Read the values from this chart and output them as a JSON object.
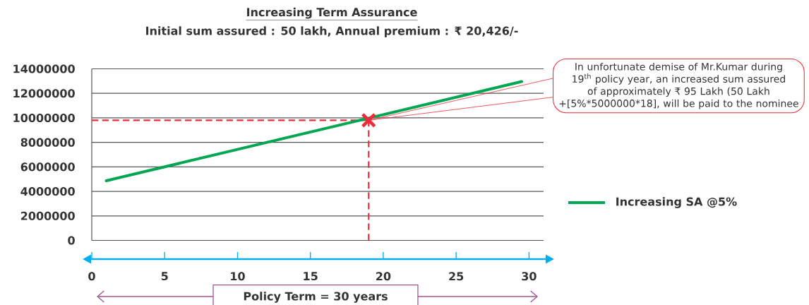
{
  "chart_data": {
    "type": "line",
    "title": "Increasing Term Assurance",
    "subtitle": "Initial sum assured : 50 lakh, Annual premium : ₹ 20,426/-",
    "xlabel": "Policy Term = 30 years",
    "x": [
      1,
      29.5
    ],
    "series": [
      {
        "name": "Increasing SA @5%",
        "color": "#00a651",
        "values": [
          4870000,
          12960000
        ]
      },
      {
        "type": "scatter",
        "marker": "cross",
        "color": "#ed2b39",
        "x": [
          19
        ],
        "values": [
          9800000
        ]
      }
    ],
    "xlim": [
      0,
      31
    ],
    "xticks": [
      0,
      5,
      10,
      15,
      20,
      25,
      30
    ],
    "ylim": [
      0,
      14000000
    ],
    "yticks": [
      0,
      2000000,
      4000000,
      6000000,
      8000000,
      10000000,
      12000000,
      14000000
    ],
    "grid": "y",
    "legend": "right",
    "marker": "none",
    "ref_lines": [
      {
        "axis": "x",
        "value": 19,
        "color": "#ed2b39",
        "line_style": "dashed"
      },
      {
        "axis": "y",
        "value": 9800000,
        "color": "#ed2b39",
        "line_style": "dashed"
      }
    ],
    "annotations": [
      {
        "text": "In unfortunate demise of Mr.Kumar during 19$^{th}$ policy year, an increased sum assured of approximately ₹ 95 Lakh (50 Lakh +[5%*5000000*18], will be paid to the nominee",
        "x": 19,
        "y": 9800000
      }
    ]
  }
}
